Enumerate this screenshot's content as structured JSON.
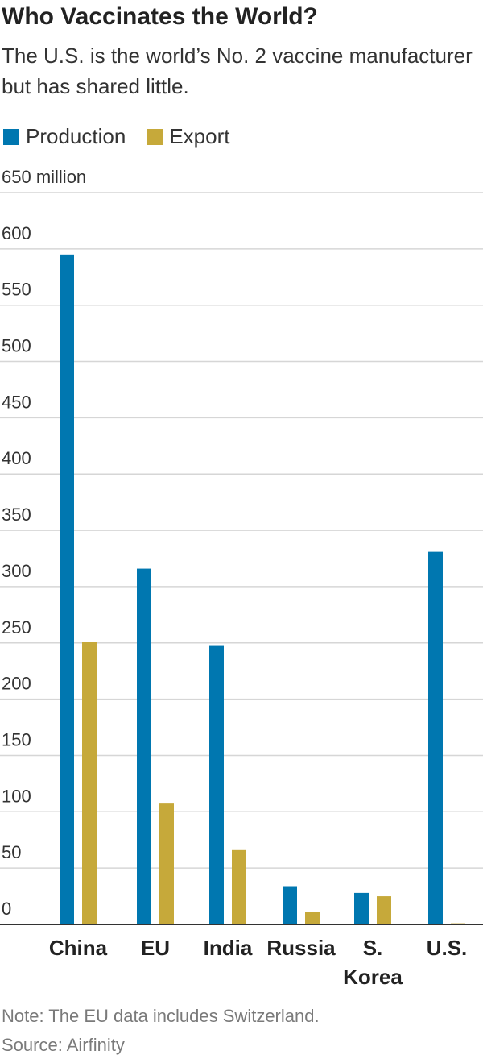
{
  "chart_data": {
    "type": "bar",
    "title": "Who Vaccinates the World?",
    "subtitle": "The U.S. is the world’s No. 2 vaccine manufacturer but has shared little.",
    "xlabel": "",
    "ylabel": "",
    "ylim": [
      0,
      650
    ],
    "yticks": [
      0,
      50,
      100,
      150,
      200,
      250,
      300,
      350,
      400,
      450,
      500,
      550,
      600,
      650
    ],
    "ytick_labels": [
      "0",
      "50",
      "100",
      "150",
      "200",
      "250",
      "300",
      "350",
      "400",
      "450",
      "500",
      "550",
      "600",
      "650 million"
    ],
    "grid": true,
    "legend_position": "top-left",
    "categories": [
      [
        "China"
      ],
      [
        "EU"
      ],
      [
        "India"
      ],
      [
        "Russia"
      ],
      [
        "S.",
        "Korea"
      ],
      [
        "U.S."
      ]
    ],
    "series": [
      {
        "name": "Production",
        "color": "#0077b0",
        "values": [
          595,
          316,
          248,
          34,
          28,
          331
        ]
      },
      {
        "name": "Export",
        "color": "#c6a93a",
        "values": [
          251,
          108,
          66,
          11,
          25,
          1
        ]
      }
    ],
    "note": "Note: The EU data includes Switzerland.",
    "source": "Source: Airfinity"
  }
}
